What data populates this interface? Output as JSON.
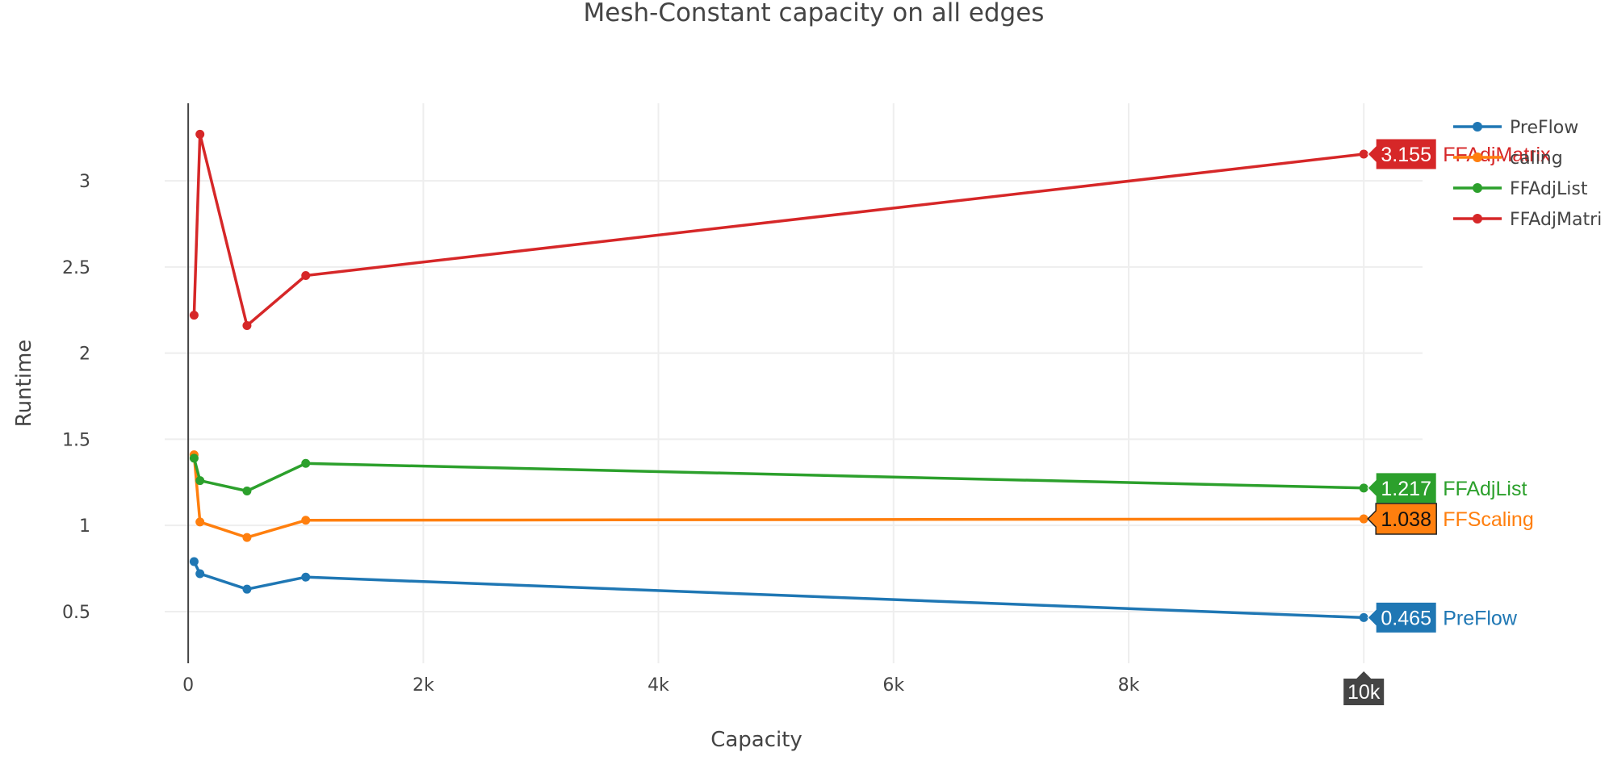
{
  "chart_data": {
    "type": "line",
    "title": "Mesh-Constant capacity on all edges",
    "xlabel": "Capacity",
    "ylabel": "Runtime",
    "xlim": [
      -200,
      10500
    ],
    "ylim": [
      0.2,
      3.45
    ],
    "x_ticks": [
      0,
      2000,
      4000,
      6000,
      8000,
      10000
    ],
    "x_tick_labels": [
      "0",
      "2k",
      "4k",
      "6k",
      "8k",
      "10k"
    ],
    "y_ticks": [
      0.5,
      1,
      1.5,
      2,
      2.5,
      3
    ],
    "y_tick_labels": [
      "0.5",
      "1",
      "1.5",
      "2",
      "2.5",
      "3"
    ],
    "grid": true,
    "legend": "top-right",
    "x": [
      50,
      100,
      500,
      1000,
      10000
    ],
    "series": [
      {
        "name": "PreFlow",
        "color": "#1f77b4",
        "values": [
          0.79,
          0.72,
          0.63,
          0.7,
          0.465
        ]
      },
      {
        "name": "FFScaling",
        "color": "#ff7f0e",
        "values": [
          1.41,
          1.02,
          0.93,
          1.03,
          1.038
        ]
      },
      {
        "name": "FFAdjList",
        "color": "#2ca02c",
        "values": [
          1.39,
          1.26,
          1.2,
          1.36,
          1.217
        ]
      },
      {
        "name": "FFAdjMatrix",
        "color": "#d62728",
        "values": [
          2.22,
          3.27,
          2.16,
          2.45,
          3.155
        ]
      }
    ],
    "legend_labels": [
      "PreFlow",
      "caling",
      "FFAdjList",
      "FFAdjMatri"
    ],
    "hover_x_label": "10k",
    "hover_labels": [
      {
        "series": "FFAdjMatrix",
        "value": "3.155",
        "name": "FFAdjMatrix"
      },
      {
        "series": "FFAdjList",
        "value": "1.217",
        "name": "FFAdjList"
      },
      {
        "series": "FFScaling",
        "value": "1.038",
        "name": "FFScaling"
      },
      {
        "series": "PreFlow",
        "value": "0.465",
        "name": "PreFlow"
      }
    ]
  }
}
